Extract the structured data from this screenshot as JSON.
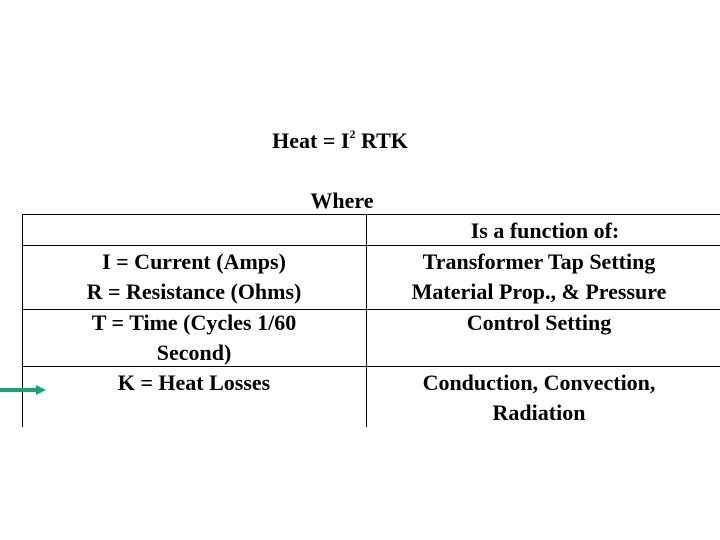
{
  "formula": {
    "prefix": "Heat = I",
    "superscript": "2",
    "suffix": " RTK"
  },
  "where_label": "Where",
  "table": {
    "header_right": "Is a function of:",
    "rows": [
      {
        "left": [
          "I = Current (Amps)",
          "R = Resistance (Ohms)"
        ],
        "right": [
          "Transformer Tap Setting",
          "Material Prop., & Pressure"
        ]
      },
      {
        "left": [
          "T = Time (Cycles 1/60",
          "Second)"
        ],
        "right": [
          "Control Setting"
        ]
      },
      {
        "left": [
          "K = Heat Losses"
        ],
        "right": [
          "Conduction, Convection,",
          "Radiation"
        ]
      }
    ]
  },
  "arrow": {
    "icon": "right-arrow-icon",
    "color": "#1aa37a"
  }
}
